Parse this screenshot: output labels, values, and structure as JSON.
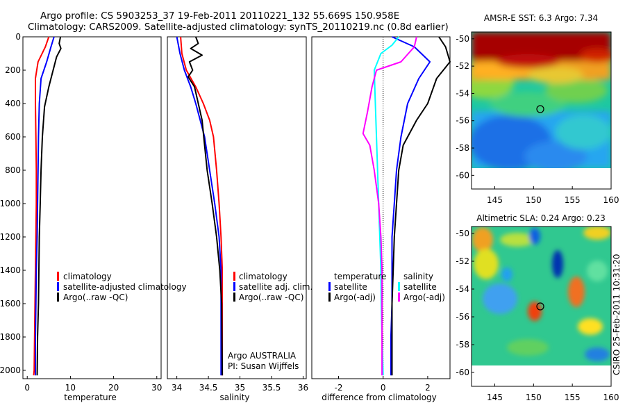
{
  "header": {
    "line1": "Argo profile: CS 5903253_37 19-Feb-2011 20110221_132 55.669S 150.958E",
    "line2": "Climatology: CARS2009. Satellite-adjusted climatology: synTS_20110219.nc (0.8d earlier)"
  },
  "side_label": "CSIRO 25-Feb-2011 10:31:20",
  "colors": {
    "climatology": "#ff0000",
    "satellite": "#0000ff",
    "argo": "#000000",
    "cyan": "#00ffff",
    "magenta": "#ff00ff"
  },
  "chart_data": [
    {
      "id": "temperature",
      "type": "line",
      "xlabel": "temperature",
      "xlim": [
        -1,
        31
      ],
      "ylim": [
        2050,
        0
      ],
      "xticks": [
        0,
        10,
        20,
        30
      ],
      "yticks": [
        0,
        200,
        400,
        600,
        800,
        1000,
        1200,
        1400,
        1600,
        1800,
        2000
      ],
      "legend": [
        "climatology",
        "satellite-adjusted climatology",
        "Argo(..raw -QC)"
      ],
      "series": [
        {
          "name": "climatology",
          "color": "climatology",
          "x": [
            5.0,
            4.2,
            2.5,
            1.9,
            1.9,
            2.0,
            2.1,
            2.1,
            2.0,
            1.9,
            1.8,
            1.7,
            1.6,
            1.5
          ],
          "y": [
            0,
            60,
            150,
            250,
            400,
            600,
            800,
            1000,
            1200,
            1400,
            1600,
            1800,
            2000,
            2030
          ]
        },
        {
          "name": "satellite-adjusted climatology",
          "color": "satellite",
          "x": [
            6.2,
            5.5,
            4.5,
            3.2,
            2.8,
            2.6,
            2.5,
            2.4,
            2.3,
            2.1,
            2.0,
            1.9,
            1.9
          ],
          "y": [
            0,
            60,
            150,
            250,
            400,
            600,
            800,
            1000,
            1200,
            1400,
            1600,
            1800,
            2030
          ]
        },
        {
          "name": "Argo(..raw -QC)",
          "color": "argo",
          "x": [
            7.7,
            7.4,
            7.8,
            6.8,
            6.0,
            5.0,
            4.0,
            3.5,
            3.2,
            3.0,
            2.8,
            2.7,
            2.6,
            2.4,
            2.3
          ],
          "y": [
            0,
            40,
            70,
            120,
            200,
            300,
            420,
            600,
            800,
            1000,
            1200,
            1400,
            1600,
            1800,
            2030
          ]
        }
      ]
    },
    {
      "id": "salinity",
      "type": "line",
      "xlabel": "salinity",
      "xlim": [
        33.85,
        36.05
      ],
      "ylim": [
        2050,
        0
      ],
      "xticks": [
        34,
        34.5,
        35,
        35.5,
        36
      ],
      "yticks": [
        0,
        200,
        400,
        600,
        800,
        1000,
        1200,
        1400,
        1600,
        1800,
        2000
      ],
      "legend": [
        "climatology",
        "satellite adj. clim.",
        "Argo(..raw -QC)"
      ],
      "annotations": [
        "Argo AUSTRALIA",
        "PI: Susan Wijffels"
      ],
      "series": [
        {
          "name": "climatology",
          "color": "climatology",
          "x": [
            34.06,
            34.08,
            34.15,
            34.3,
            34.42,
            34.52,
            34.58,
            34.63,
            34.67,
            34.7,
            34.72,
            34.72,
            34.72
          ],
          "y": [
            0,
            100,
            200,
            300,
            400,
            500,
            600,
            800,
            1000,
            1200,
            1400,
            1600,
            2030
          ]
        },
        {
          "name": "satellite adj. clim.",
          "color": "satellite",
          "x": [
            34.0,
            34.05,
            34.12,
            34.22,
            34.3,
            34.37,
            34.44,
            34.52,
            34.6,
            34.67,
            34.7,
            34.7,
            34.7
          ],
          "y": [
            0,
            100,
            200,
            300,
            400,
            500,
            600,
            800,
            1000,
            1200,
            1400,
            1600,
            2030
          ]
        },
        {
          "name": "Argo(..raw -QC)",
          "color": "argo",
          "x": [
            34.3,
            34.34,
            34.22,
            34.4,
            34.2,
            34.25,
            34.18,
            34.28,
            34.4,
            34.44,
            34.48,
            34.56,
            34.63,
            34.68,
            34.71,
            34.72
          ],
          "y": [
            0,
            40,
            70,
            110,
            150,
            200,
            240,
            300,
            500,
            650,
            800,
            1000,
            1200,
            1400,
            1600,
            2030
          ]
        }
      ]
    },
    {
      "id": "difference",
      "type": "line",
      "xlabel": "difference from climatology",
      "xlim": [
        -3.2,
        3.0
      ],
      "ylim": [
        2050,
        0
      ],
      "xticks": [
        -2,
        0,
        2
      ],
      "yticks": [
        0,
        200,
        400,
        600,
        800,
        1000,
        1200,
        1400,
        1600,
        1800,
        2000
      ],
      "legend_titles": [
        "temperature",
        "salinity"
      ],
      "legend": [
        "satellite",
        "Argo(-adj)",
        "satellite",
        "Argo(-adj)"
      ],
      "series": [
        {
          "name": "temperature satellite",
          "color": "satellite",
          "x": [
            0.4,
            1.4,
            2.1,
            1.6,
            1.1,
            0.8,
            0.6,
            0.5,
            0.4,
            0.4,
            0.4,
            0.35,
            0.35
          ],
          "y": [
            0,
            60,
            150,
            250,
            400,
            600,
            800,
            1000,
            1200,
            1400,
            1600,
            1800,
            2030
          ]
        },
        {
          "name": "temperature Argo(-adj)",
          "color": "argo",
          "x": [
            2.5,
            2.8,
            3.0,
            2.4,
            2.0,
            1.5,
            0.9,
            0.7,
            0.6,
            0.5,
            0.45,
            0.4,
            0.4
          ],
          "y": [
            0,
            60,
            150,
            250,
            400,
            500,
            650,
            800,
            1000,
            1200,
            1400,
            1600,
            2030
          ]
        },
        {
          "name": "salinity satellite",
          "color": "cyan",
          "x": [
            0.7,
            0.4,
            -0.1,
            -0.4,
            -0.35,
            -0.3,
            -0.25,
            -0.2,
            -0.15,
            -0.1,
            -0.08,
            -0.05,
            0.0
          ],
          "y": [
            0,
            50,
            100,
            200,
            400,
            600,
            800,
            1000,
            1200,
            1400,
            1600,
            1800,
            2030
          ]
        },
        {
          "name": "salinity Argo(-adj)",
          "color": "magenta",
          "x": [
            1.5,
            1.4,
            0.8,
            -0.3,
            -0.5,
            -0.7,
            -0.9,
            -0.6,
            -0.4,
            -0.2,
            -0.1,
            -0.05,
            -0.05
          ],
          "y": [
            0,
            60,
            150,
            200,
            300,
            450,
            580,
            650,
            800,
            1000,
            1200,
            1400,
            2030
          ]
        }
      ]
    },
    {
      "id": "sst_map",
      "type": "heatmap",
      "title": "AMSR-E SST: 6.3 Argo: 7.34",
      "xlim": [
        142,
        160
      ],
      "ylim": [
        -61,
        -49.5
      ],
      "xticks": [
        145,
        150,
        155,
        160
      ],
      "yticks": [
        -50,
        -52,
        -54,
        -56,
        -58,
        -60
      ],
      "float_position": [
        150.958,
        -55.669
      ]
    },
    {
      "id": "sla_map",
      "type": "heatmap",
      "title": "Altimetric SLA: 0.24 Argo: 0.23",
      "xlim": [
        142,
        160
      ],
      "ylim": [
        -61,
        -49.5
      ],
      "xticks": [
        145,
        150,
        155,
        160
      ],
      "yticks": [
        -50,
        -52,
        -54,
        -56,
        -58,
        -60
      ],
      "float_position": [
        150.958,
        -55.669
      ]
    }
  ]
}
